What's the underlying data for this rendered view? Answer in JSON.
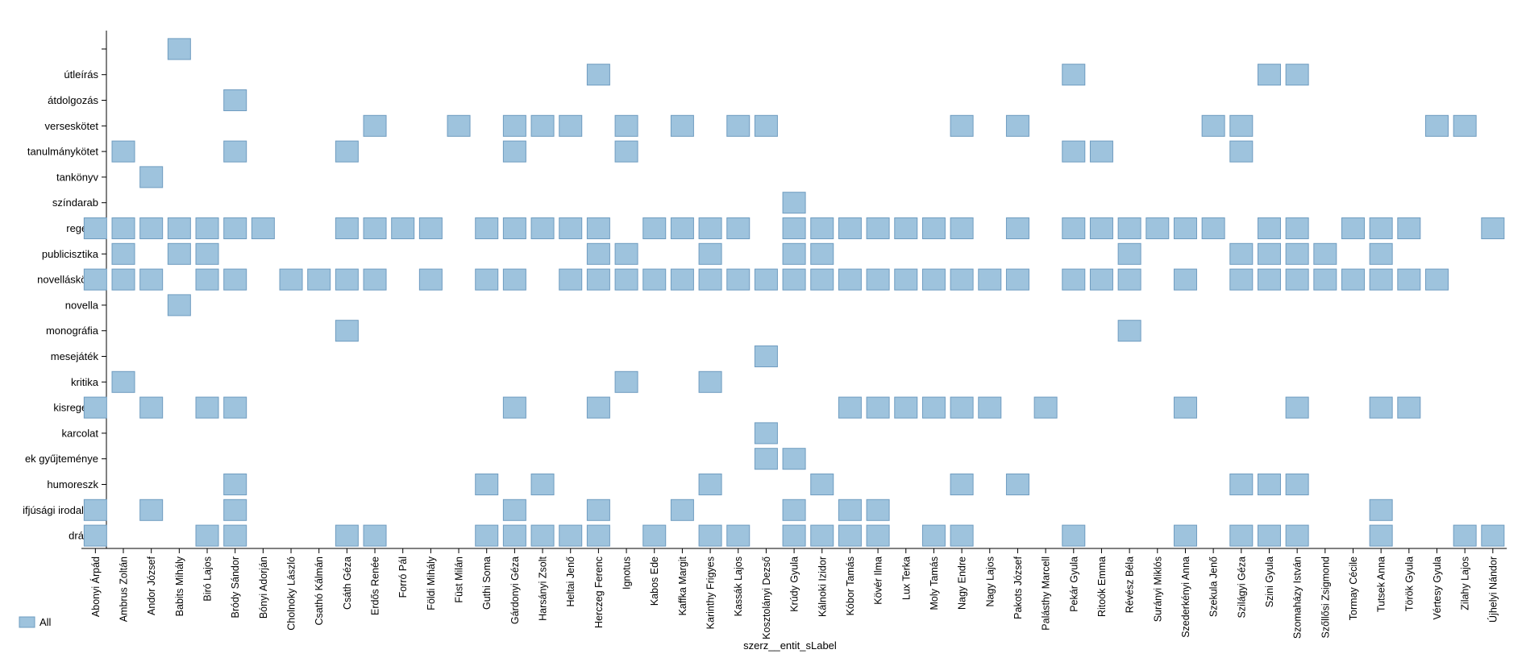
{
  "chart_data": {
    "type": "heatmap",
    "title": "",
    "xlabel": "szerz__entit_sLabel",
    "ylabel": "",
    "legend": {
      "position": "bottom-left",
      "entries": [
        "All"
      ]
    },
    "colors": {
      "cell_fill": "#9ec3dd",
      "cell_stroke": "#6f9cc0",
      "axis": "#000000"
    },
    "authors": [
      "Abonyi Árpád",
      "Ambrus Zoltán",
      "Andor József",
      "Babits Mihály",
      "Biró Lajos",
      "Bródy Sándor",
      "Bónyi Adorján",
      "Cholnoky László",
      "Csathó Kálmán",
      "Csáth Géza",
      "Erdős Renée",
      "Forró Pál",
      "Földi Mihály",
      "Füst Milán",
      "Guthi Soma",
      "Gárdonyi Géza",
      "Harsányi Zsolt",
      "Heltai Jenő",
      "Herczeg Ferenc",
      "Ignotus",
      "Kabos Ede",
      "Kaffka Margit",
      "Karinthy Frigyes",
      "Kassák Lajos",
      "Kosztolányi Dezső",
      "Krúdy Gyula",
      "Kálnoki Izidor",
      "Kóbor Tamás",
      "Kövér Ilma",
      "Lux Terka",
      "Moly Tamás",
      "Nagy Endre",
      "Nagy Lajos",
      "Pakots József",
      "Palásthy Marcell",
      "Pekár Gyula",
      "Ritoók Emma",
      "Révész Béla",
      "Surányi Miklós",
      "Szederkényi Anna",
      "Szekula Jenő",
      "Szilágyi Géza",
      "Szini Gyula",
      "Szomaházy István",
      "Szőllősi Zsigmond",
      "Tormay Cécile",
      "Tutsek Anna",
      "Török Gyula",
      "Vértesy Gyula",
      "Zilahy Lajos",
      "Újhelyi Nándor"
    ],
    "genres": [
      "",
      "útleírás",
      "átdolgozás",
      "verseskötet",
      "tanulmánykötet",
      "tankönyv",
      "színdarab",
      "regény",
      "publicisztika",
      "novelláskötet",
      "novella",
      "monográfia",
      "mesejáték",
      "kritika",
      "kisregény",
      "karcolat",
      "ek gyűjteménye",
      "humoreszk",
      "ifjúsági irodalom",
      "dráma"
    ],
    "cells": [
      [
        0,
        3
      ],
      [
        1,
        18
      ],
      [
        1,
        35
      ],
      [
        1,
        42
      ],
      [
        1,
        43
      ],
      [
        2,
        5
      ],
      [
        3,
        10
      ],
      [
        3,
        13
      ],
      [
        3,
        15
      ],
      [
        3,
        16
      ],
      [
        3,
        17
      ],
      [
        3,
        19
      ],
      [
        3,
        21
      ],
      [
        3,
        23
      ],
      [
        3,
        24
      ],
      [
        3,
        31
      ],
      [
        3,
        33
      ],
      [
        3,
        40
      ],
      [
        3,
        41
      ],
      [
        3,
        48
      ],
      [
        3,
        49
      ],
      [
        4,
        1
      ],
      [
        4,
        5
      ],
      [
        4,
        9
      ],
      [
        4,
        15
      ],
      [
        4,
        19
      ],
      [
        4,
        35
      ],
      [
        4,
        36
      ],
      [
        4,
        41
      ],
      [
        5,
        2
      ],
      [
        6,
        25
      ],
      [
        7,
        0
      ],
      [
        7,
        1
      ],
      [
        7,
        2
      ],
      [
        7,
        3
      ],
      [
        7,
        4
      ],
      [
        7,
        5
      ],
      [
        7,
        6
      ],
      [
        7,
        9
      ],
      [
        7,
        10
      ],
      [
        7,
        11
      ],
      [
        7,
        12
      ],
      [
        7,
        14
      ],
      [
        7,
        15
      ],
      [
        7,
        16
      ],
      [
        7,
        17
      ],
      [
        7,
        18
      ],
      [
        7,
        20
      ],
      [
        7,
        21
      ],
      [
        7,
        22
      ],
      [
        7,
        23
      ],
      [
        7,
        25
      ],
      [
        7,
        26
      ],
      [
        7,
        27
      ],
      [
        7,
        28
      ],
      [
        7,
        29
      ],
      [
        7,
        30
      ],
      [
        7,
        31
      ],
      [
        7,
        33
      ],
      [
        7,
        35
      ],
      [
        7,
        36
      ],
      [
        7,
        37
      ],
      [
        7,
        38
      ],
      [
        7,
        39
      ],
      [
        7,
        40
      ],
      [
        7,
        42
      ],
      [
        7,
        43
      ],
      [
        7,
        45
      ],
      [
        7,
        46
      ],
      [
        7,
        47
      ],
      [
        7,
        50
      ],
      [
        8,
        1
      ],
      [
        8,
        3
      ],
      [
        8,
        4
      ],
      [
        8,
        18
      ],
      [
        8,
        19
      ],
      [
        8,
        22
      ],
      [
        8,
        25
      ],
      [
        8,
        26
      ],
      [
        8,
        37
      ],
      [
        8,
        41
      ],
      [
        8,
        42
      ],
      [
        8,
        43
      ],
      [
        8,
        44
      ],
      [
        8,
        46
      ],
      [
        9,
        0
      ],
      [
        9,
        1
      ],
      [
        9,
        2
      ],
      [
        9,
        4
      ],
      [
        9,
        5
      ],
      [
        9,
        7
      ],
      [
        9,
        8
      ],
      [
        9,
        9
      ],
      [
        9,
        10
      ],
      [
        9,
        12
      ],
      [
        9,
        14
      ],
      [
        9,
        15
      ],
      [
        9,
        17
      ],
      [
        9,
        18
      ],
      [
        9,
        19
      ],
      [
        9,
        20
      ],
      [
        9,
        21
      ],
      [
        9,
        22
      ],
      [
        9,
        23
      ],
      [
        9,
        24
      ],
      [
        9,
        25
      ],
      [
        9,
        26
      ],
      [
        9,
        27
      ],
      [
        9,
        28
      ],
      [
        9,
        29
      ],
      [
        9,
        30
      ],
      [
        9,
        31
      ],
      [
        9,
        32
      ],
      [
        9,
        33
      ],
      [
        9,
        35
      ],
      [
        9,
        36
      ],
      [
        9,
        37
      ],
      [
        9,
        39
      ],
      [
        9,
        41
      ],
      [
        9,
        42
      ],
      [
        9,
        43
      ],
      [
        9,
        44
      ],
      [
        9,
        45
      ],
      [
        9,
        46
      ],
      [
        9,
        47
      ],
      [
        9,
        48
      ],
      [
        10,
        3
      ],
      [
        11,
        9
      ],
      [
        11,
        37
      ],
      [
        12,
        24
      ],
      [
        13,
        1
      ],
      [
        13,
        19
      ],
      [
        13,
        22
      ],
      [
        14,
        0
      ],
      [
        14,
        2
      ],
      [
        14,
        4
      ],
      [
        14,
        5
      ],
      [
        14,
        15
      ],
      [
        14,
        18
      ],
      [
        14,
        27
      ],
      [
        14,
        28
      ],
      [
        14,
        29
      ],
      [
        14,
        30
      ],
      [
        14,
        31
      ],
      [
        14,
        32
      ],
      [
        14,
        34
      ],
      [
        14,
        39
      ],
      [
        14,
        43
      ],
      [
        14,
        46
      ],
      [
        14,
        47
      ],
      [
        15,
        24
      ],
      [
        16,
        24
      ],
      [
        16,
        25
      ],
      [
        17,
        5
      ],
      [
        17,
        14
      ],
      [
        17,
        16
      ],
      [
        17,
        22
      ],
      [
        17,
        26
      ],
      [
        17,
        31
      ],
      [
        17,
        33
      ],
      [
        17,
        41
      ],
      [
        17,
        42
      ],
      [
        17,
        43
      ],
      [
        18,
        0
      ],
      [
        18,
        2
      ],
      [
        18,
        5
      ],
      [
        18,
        15
      ],
      [
        18,
        18
      ],
      [
        18,
        21
      ],
      [
        18,
        25
      ],
      [
        18,
        27
      ],
      [
        18,
        28
      ],
      [
        18,
        46
      ],
      [
        19,
        0
      ],
      [
        19,
        4
      ],
      [
        19,
        5
      ],
      [
        19,
        9
      ],
      [
        19,
        10
      ],
      [
        19,
        14
      ],
      [
        19,
        15
      ],
      [
        19,
        16
      ],
      [
        19,
        17
      ],
      [
        19,
        18
      ],
      [
        19,
        20
      ],
      [
        19,
        22
      ],
      [
        19,
        23
      ],
      [
        19,
        25
      ],
      [
        19,
        26
      ],
      [
        19,
        27
      ],
      [
        19,
        28
      ],
      [
        19,
        30
      ],
      [
        19,
        31
      ],
      [
        19,
        35
      ],
      [
        19,
        39
      ],
      [
        19,
        41
      ],
      [
        19,
        42
      ],
      [
        19,
        43
      ],
      [
        19,
        46
      ],
      [
        19,
        49
      ],
      [
        19,
        50
      ]
    ]
  }
}
